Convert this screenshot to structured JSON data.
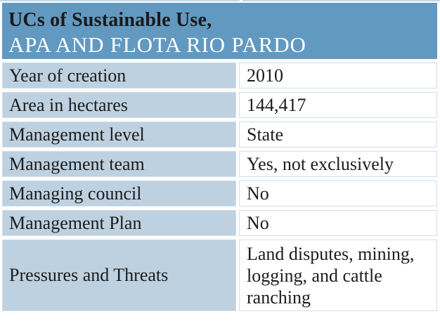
{
  "table": {
    "title_line1": "UCs of Sustainable Use,",
    "title_line2": "APA AND FLOTA RIO PARDO",
    "rows": [
      {
        "label": "Year of creation",
        "value": "2010"
      },
      {
        "label": "Area in hectares",
        "value": "144,417"
      },
      {
        "label": "Management level",
        "value": "State"
      },
      {
        "label": "Management team",
        "value": "Yes, not exclusively"
      },
      {
        "label": "Managing council",
        "value": "No"
      },
      {
        "label": "Management Plan",
        "value": "No"
      },
      {
        "label": "Pressures and Threats",
        "value": "Land disputes, mining,\nlogging, and cattle\nranching"
      }
    ],
    "colors": {
      "header_bg": "#6199c1",
      "label_cell_bg": "#bed1e0",
      "cell_border": "#cfdfeb",
      "title_line1_color": "#1a1a1a",
      "title_line2_color": "#ffffff",
      "body_text": "#1c1c1c",
      "top_strip": "#c6d5e2"
    }
  }
}
